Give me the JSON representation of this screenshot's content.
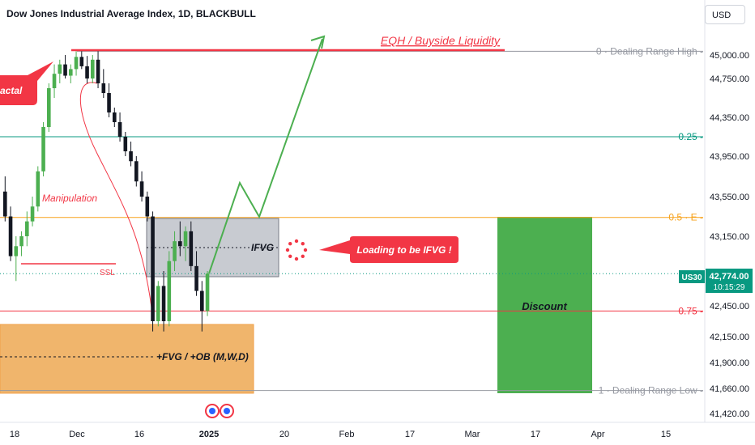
{
  "header": {
    "title": "Dow Jones Industrial Average Index, 1D, BLACKBULL",
    "currency_button": "USD"
  },
  "price_tag": {
    "symbol": "US30",
    "price": "42,774.00",
    "countdown": "10:15:29"
  },
  "annotations": {
    "eqh": "EQH / Buyside Liquidity",
    "fractal": "actal",
    "manipulation": "Manipulation",
    "ssl": "SSL",
    "ifvg": "IFVG",
    "loading": "Loading to be IFVG !",
    "fvg_ob": "+FVG / +OB (M,W,D)",
    "discount": "Discount"
  },
  "levels": [
    {
      "label": "0 · Dealing Range High -",
      "price": 45040,
      "color": "#9598a1"
    },
    {
      "label": "0.25 -",
      "price": 44150,
      "color": "#089981"
    },
    {
      "label": "0.5 · E -",
      "price": 43340,
      "color": "#f7a21b"
    },
    {
      "label": "0.75 -",
      "price": 42400,
      "color": "#f23645"
    },
    {
      "label": "1 · Dealing Range Low -",
      "price": 41640,
      "color": "#9598a1"
    }
  ],
  "chart_data": {
    "type": "candlestick",
    "title": "Dow Jones Industrial Average Index, 1D, BLACKBULL",
    "y_ticks": [
      "45,000.00",
      "44,750.00",
      "44,350.00",
      "43,950.00",
      "43,550.00",
      "43,150.00",
      "42,450.00",
      "42,150.00",
      "41,900.00",
      "41,660.00",
      "41,420.00"
    ],
    "x_ticks": [
      "18",
      "Dec",
      "16",
      "2025",
      "20",
      "Feb",
      "17",
      "Mar",
      "17",
      "Apr",
      "15"
    ],
    "ohlc": [
      [
        43600,
        43750,
        43300,
        43350
      ],
      [
        43350,
        43450,
        42900,
        42950
      ],
      [
        42950,
        43150,
        42700,
        43050
      ],
      [
        43050,
        43200,
        42950,
        43150
      ],
      [
        43150,
        43400,
        43050,
        43300
      ],
      [
        43300,
        43550,
        43250,
        43450
      ],
      [
        43450,
        43850,
        43400,
        43800
      ],
      [
        43800,
        44300,
        43750,
        44250
      ],
      [
        44250,
        44700,
        44200,
        44650
      ],
      [
        44650,
        44900,
        44550,
        44800
      ],
      [
        44800,
        44950,
        44700,
        44900
      ],
      [
        44900,
        45000,
        44750,
        44780
      ],
      [
        44780,
        44900,
        44700,
        44850
      ],
      [
        44850,
        45040,
        44780,
        44980
      ],
      [
        44980,
        45040,
        44850,
        44880
      ],
      [
        44880,
        44990,
        44700,
        44750
      ],
      [
        44750,
        45000,
        44700,
        44950
      ],
      [
        44950,
        45040,
        44650,
        44700
      ],
      [
        44700,
        44850,
        44550,
        44600
      ],
      [
        44600,
        44700,
        44350,
        44400
      ],
      [
        44400,
        44450,
        44250,
        44300
      ],
      [
        44300,
        44400,
        44100,
        44150
      ],
      [
        44150,
        44200,
        43950,
        44000
      ],
      [
        44000,
        44100,
        43850,
        43900
      ],
      [
        43900,
        43950,
        43650,
        43700
      ],
      [
        43700,
        43800,
        43500,
        43550
      ],
      [
        43550,
        43600,
        43300,
        43350
      ],
      [
        43350,
        43400,
        42200,
        42300
      ],
      [
        42300,
        42700,
        42250,
        42650
      ],
      [
        42650,
        42800,
        42200,
        42300
      ],
      [
        42300,
        43000,
        42250,
        42900
      ],
      [
        42900,
        43200,
        42800,
        43100
      ],
      [
        43100,
        43300,
        42950,
        43050
      ],
      [
        43050,
        43250,
        42900,
        43200
      ],
      [
        43200,
        43300,
        42800,
        42850
      ],
      [
        42850,
        43000,
        42550,
        42600
      ],
      [
        42600,
        42700,
        42200,
        42400
      ],
      [
        42400,
        42800,
        42350,
        42774
      ]
    ]
  }
}
